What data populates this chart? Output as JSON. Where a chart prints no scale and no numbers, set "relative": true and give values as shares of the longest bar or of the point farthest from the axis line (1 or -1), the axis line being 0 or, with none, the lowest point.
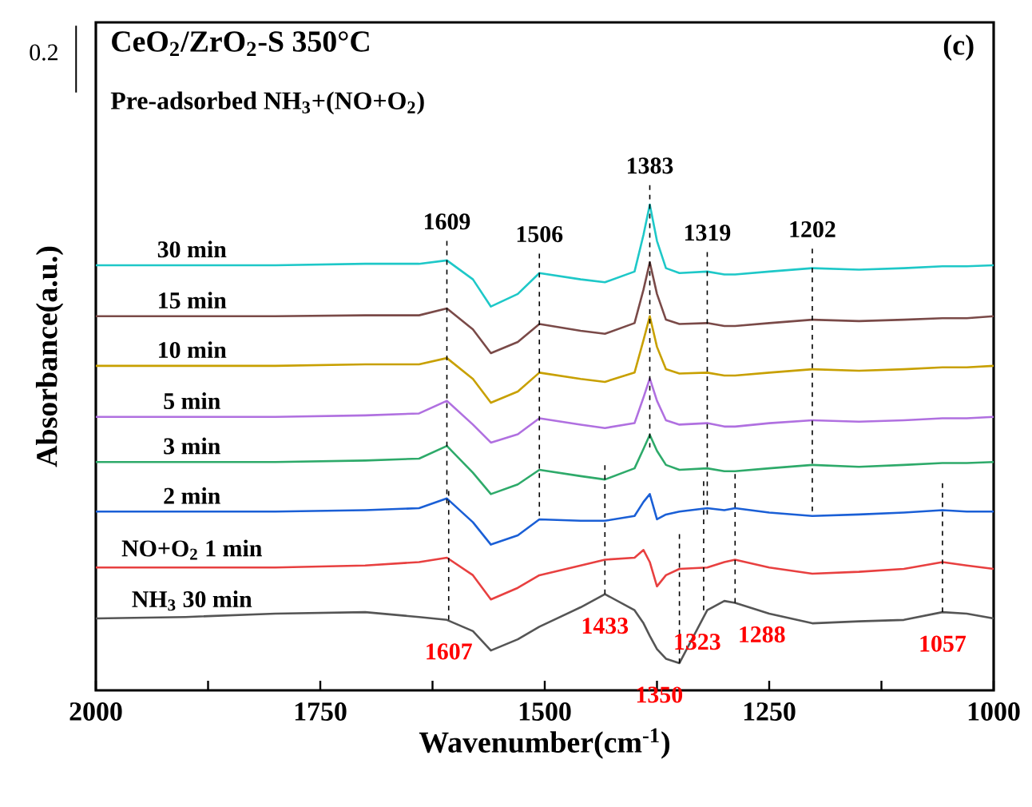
{
  "chart_data": {
    "type": "line",
    "title": "CeO$_{2}$/ZrO$_{2}$-S  350°C",
    "subtitle": "Pre-adsorbed NH$_{3}$+(NO+O$_{2}$)",
    "xlabel": "Wavenumber(cm$^{-1}$)",
    "ylabel": "Absorbance(a.u.)",
    "relative": true,
    "tick_labels": "x",
    "line_style": "solid",
    "xlim": [
      2000,
      1000
    ],
    "xticks": [
      2000,
      {
        "value": 1875,
        "label": null
      },
      1750,
      {
        "value": 1625,
        "label": null
      },
      1500,
      {
        "value": 1375,
        "label": null
      },
      1250,
      {
        "value": 1125,
        "label": null
      },
      1000
    ],
    "x": [
      2000,
      1900,
      1800,
      1700,
      1640,
      1609,
      1580,
      1560,
      1530,
      1506,
      1460,
      1433,
      1400,
      1390,
      1383,
      1375,
      1365,
      1350,
      1319,
      1300,
      1288,
      1250,
      1202,
      1150,
      1100,
      1057,
      1030,
      1000
    ],
    "series": [
      {
        "name": "30 min",
        "color": "#1ec8c8",
        "values": [
          0.875,
          0.875,
          0.875,
          0.878,
          0.878,
          0.885,
          0.846,
          0.79,
          0.816,
          0.859,
          0.846,
          0.84,
          0.862,
          0.938,
          1.0,
          0.925,
          0.869,
          0.859,
          0.862,
          0.856,
          0.856,
          0.862,
          0.869,
          0.866,
          0.869,
          0.873,
          0.873,
          0.875
        ]
      },
      {
        "name": "15 min",
        "color": "#7a4a48",
        "values": [
          0.77,
          0.77,
          0.77,
          0.772,
          0.772,
          0.786,
          0.743,
          0.694,
          0.717,
          0.754,
          0.74,
          0.734,
          0.756,
          0.825,
          0.881,
          0.816,
          0.763,
          0.754,
          0.756,
          0.75,
          0.75,
          0.756,
          0.763,
          0.76,
          0.763,
          0.766,
          0.766,
          0.77
        ]
      },
      {
        "name": "10 min",
        "color": "#c8a000",
        "values": [
          0.668,
          0.668,
          0.668,
          0.671,
          0.671,
          0.684,
          0.641,
          0.592,
          0.615,
          0.654,
          0.641,
          0.635,
          0.654,
          0.721,
          0.77,
          0.707,
          0.661,
          0.652,
          0.654,
          0.648,
          0.648,
          0.654,
          0.661,
          0.658,
          0.661,
          0.665,
          0.665,
          0.668
        ]
      },
      {
        "name": "5 min",
        "color": "#b070e0",
        "values": [
          0.563,
          0.563,
          0.563,
          0.566,
          0.57,
          0.596,
          0.547,
          0.51,
          0.527,
          0.56,
          0.547,
          0.54,
          0.55,
          0.603,
          0.642,
          0.596,
          0.556,
          0.547,
          0.55,
          0.543,
          0.543,
          0.55,
          0.556,
          0.553,
          0.556,
          0.56,
          0.56,
          0.563
        ]
      },
      {
        "name": "3 min",
        "color": "#2eaa6a",
        "values": [
          0.47,
          0.47,
          0.47,
          0.473,
          0.477,
          0.503,
          0.448,
          0.404,
          0.424,
          0.454,
          0.441,
          0.434,
          0.457,
          0.497,
          0.526,
          0.493,
          0.464,
          0.454,
          0.457,
          0.451,
          0.451,
          0.457,
          0.464,
          0.46,
          0.464,
          0.468,
          0.468,
          0.47
        ]
      },
      {
        "name": "2 min",
        "color": "#1a5fd6",
        "values": [
          0.368,
          0.368,
          0.368,
          0.371,
          0.375,
          0.395,
          0.346,
          0.3,
          0.319,
          0.352,
          0.349,
          0.349,
          0.359,
          0.388,
          0.404,
          0.352,
          0.362,
          0.368,
          0.375,
          0.371,
          0.375,
          0.366,
          0.359,
          0.362,
          0.366,
          0.371,
          0.368,
          0.368
        ]
      },
      {
        "name": "NO+O$_{2}$ 1 min",
        "color": "#e84040",
        "values": [
          0.253,
          0.253,
          0.253,
          0.257,
          0.264,
          0.273,
          0.237,
          0.187,
          0.211,
          0.237,
          0.257,
          0.269,
          0.273,
          0.289,
          0.264,
          0.214,
          0.237,
          0.25,
          0.253,
          0.264,
          0.269,
          0.253,
          0.24,
          0.244,
          0.25,
          0.264,
          0.257,
          0.25
        ]
      },
      {
        "name": "NH$_{3}$ 30 min",
        "color": "#555555",
        "values": [
          0.148,
          0.151,
          0.158,
          0.161,
          0.151,
          0.145,
          0.122,
          0.082,
          0.105,
          0.131,
          0.171,
          0.198,
          0.165,
          0.138,
          0.112,
          0.085,
          0.065,
          0.056,
          0.165,
          0.184,
          0.18,
          0.158,
          0.138,
          0.142,
          0.145,
          0.161,
          0.158,
          0.148
        ]
      }
    ],
    "annotations": [
      "(c)",
      "0.2",
      {
        "text": "1609",
        "x": 1609,
        "y": 0.885
      },
      {
        "text": "1506",
        "x": 1506,
        "y": 0.859
      },
      {
        "text": "1383",
        "x": 1383,
        "y": 1.0
      },
      {
        "text": "1319",
        "x": 1319,
        "y": 0.862
      },
      {
        "text": "1202",
        "x": 1202,
        "y": 0.869
      },
      {
        "text": "1607",
        "x": 1607,
        "y": 0.145
      },
      {
        "text": "1433",
        "x": 1433,
        "y": 0.198
      },
      {
        "text": "1350",
        "x": 1350,
        "y": 0.056
      },
      {
        "text": "1323",
        "x": 1323,
        "y": 0.165
      },
      {
        "text": "1288",
        "x": 1288,
        "y": 0.18
      },
      {
        "text": "1057",
        "x": 1057,
        "y": 0.161
      }
    ]
  }
}
